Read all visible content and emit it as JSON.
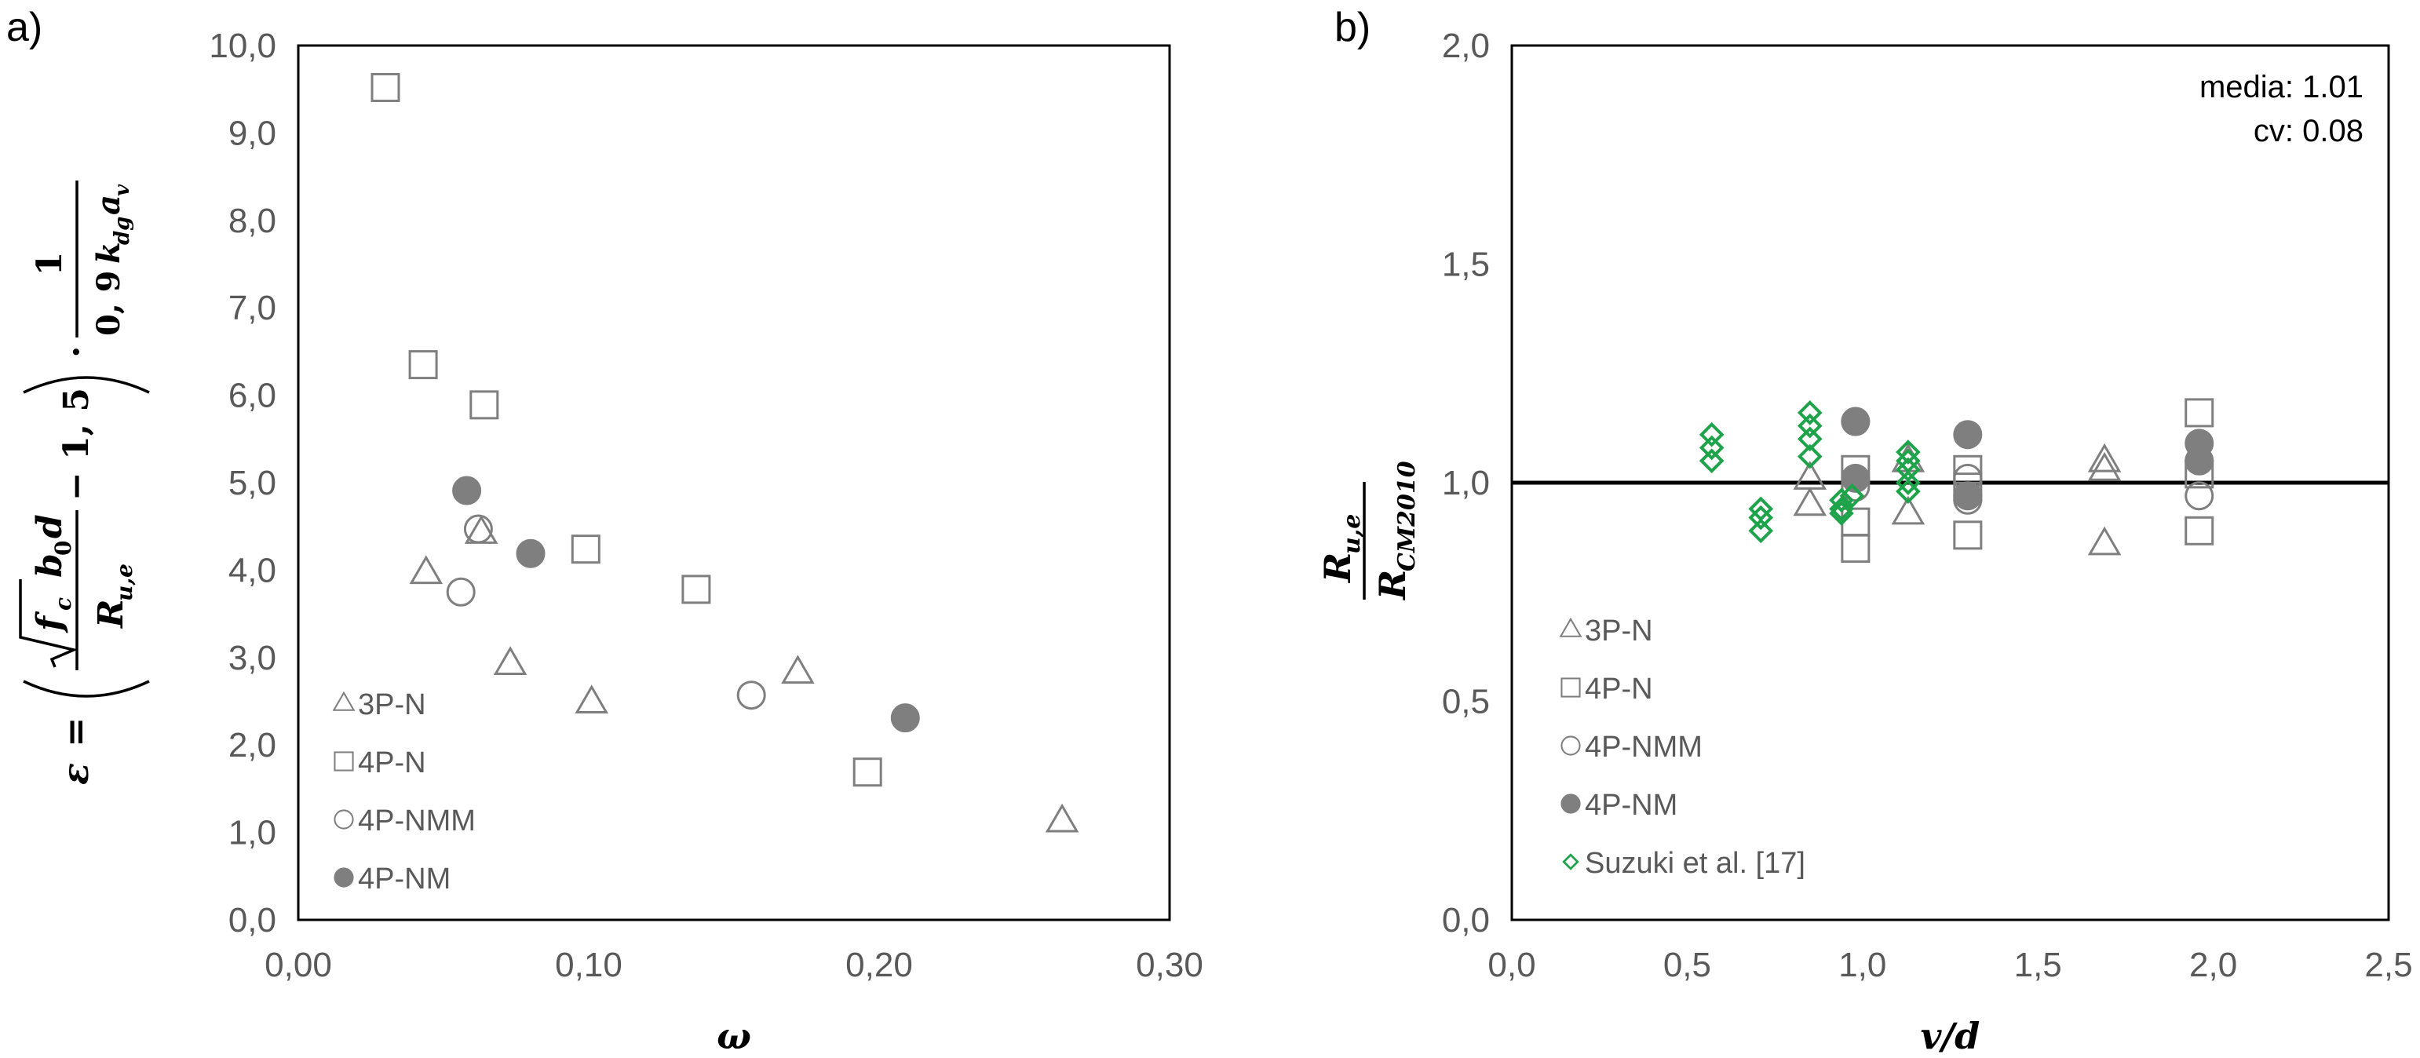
{
  "chart_data": [
    {
      "type": "scatter",
      "panel_label": "a)",
      "xlabel": "ω",
      "ylabel": {
        "lhs": "ε",
        "equals": "=",
        "sqrt_content": "f",
        "sqrt_sub": "c",
        "numerator_tail": "b",
        "numerator_tail_sub": "0",
        "numerator_end": "d",
        "denominator": "R",
        "denominator_sub": "u,e",
        "minus": "− 1, 5",
        "dot": "·",
        "frac2_num": "1",
        "frac2_den_a": "0, 9",
        "frac2_den_k": "k",
        "frac2_den_k_sub": "dg",
        "frac2_den_a2": "a",
        "frac2_den_a2_sub": "v"
      },
      "xlim": [
        0,
        0.3
      ],
      "ylim": [
        0,
        10
      ],
      "xticks": [
        "0,00",
        "0,10",
        "0,20",
        "0,30"
      ],
      "xtick_values": [
        0,
        0.1,
        0.2,
        0.3
      ],
      "yticks": [
        "0,0",
        "1,0",
        "2,0",
        "3,0",
        "4,0",
        "5,0",
        "6,0",
        "7,0",
        "8,0",
        "9,0",
        "10,0"
      ],
      "ytick_values": [
        0,
        1,
        2,
        3,
        4,
        5,
        6,
        7,
        8,
        9,
        10
      ],
      "grid": false,
      "legend_position": "bottom-left",
      "series": [
        {
          "name": "3P-N",
          "marker": "triangle-open",
          "color": "#7f7f7f",
          "points": [
            [
              0.044,
              3.97
            ],
            [
              0.063,
              4.43
            ],
            [
              0.073,
              2.93
            ],
            [
              0.101,
              2.49
            ],
            [
              0.172,
              2.83
            ],
            [
              0.263,
              1.13
            ]
          ]
        },
        {
          "name": "4P-N",
          "marker": "square-open",
          "color": "#7f7f7f",
          "points": [
            [
              0.03,
              9.52
            ],
            [
              0.043,
              6.35
            ],
            [
              0.064,
              5.89
            ],
            [
              0.099,
              4.24
            ],
            [
              0.137,
              3.78
            ],
            [
              0.196,
              1.69
            ]
          ]
        },
        {
          "name": "4P-NMM",
          "marker": "circle-open",
          "color": "#7f7f7f",
          "points": [
            [
              0.056,
              3.75
            ],
            [
              0.062,
              4.47
            ],
            [
              0.156,
              2.57
            ]
          ]
        },
        {
          "name": "4P-NM",
          "marker": "circle-filled",
          "color": "#7f7f7f",
          "points": [
            [
              0.058,
              4.91
            ],
            [
              0.08,
              4.19
            ],
            [
              0.209,
              2.31
            ]
          ]
        }
      ]
    },
    {
      "type": "scatter",
      "panel_label": "b)",
      "xlabel": "v/d",
      "ylabel": {
        "num": "R",
        "num_sub": "u,e",
        "den": "R",
        "den_sub": "CM2010"
      },
      "xlim": [
        0,
        2.5
      ],
      "ylim": [
        0,
        2.0
      ],
      "xticks": [
        "0,0",
        "0,5",
        "1,0",
        "1,5",
        "2,0",
        "2,5"
      ],
      "xtick_values": [
        0,
        0.5,
        1.0,
        1.5,
        2.0,
        2.5
      ],
      "yticks": [
        "0,0",
        "0,5",
        "1,0",
        "1,5",
        "2,0"
      ],
      "ytick_values": [
        0,
        0.5,
        1.0,
        1.5,
        2.0
      ],
      "grid": false,
      "legend_position": "bottom-left",
      "reference_line_y": 1.0,
      "annotations": [
        "media: 1.01",
        "cv: 0.08"
      ],
      "series": [
        {
          "name": "3P-N",
          "marker": "triangle-open",
          "color": "#7f7f7f",
          "points": [
            [
              0.85,
              1.01
            ],
            [
              0.85,
              0.95
            ],
            [
              1.13,
              1.05
            ],
            [
              1.13,
              0.93
            ],
            [
              1.69,
              1.05
            ],
            [
              1.69,
              1.03
            ],
            [
              1.69,
              0.86
            ]
          ]
        },
        {
          "name": "4P-N",
          "marker": "square-open",
          "color": "#7f7f7f",
          "points": [
            [
              0.98,
              1.03
            ],
            [
              0.98,
              0.91
            ],
            [
              0.98,
              0.85
            ],
            [
              1.3,
              1.03
            ],
            [
              1.3,
              0.99
            ],
            [
              1.3,
              0.88
            ],
            [
              1.96,
              1.16
            ],
            [
              1.96,
              1.02
            ],
            [
              1.96,
              0.89
            ]
          ]
        },
        {
          "name": "4P-NMM",
          "marker": "circle-open",
          "color": "#7f7f7f",
          "points": [
            [
              0.98,
              1.14
            ],
            [
              0.98,
              0.99
            ],
            [
              1.3,
              1.01
            ],
            [
              1.3,
              0.96
            ],
            [
              1.96,
              1.05
            ],
            [
              1.96,
              0.97
            ]
          ]
        },
        {
          "name": "4P-NM",
          "marker": "circle-filled",
          "color": "#7f7f7f",
          "points": [
            [
              0.98,
              1.14
            ],
            [
              0.98,
              1.01
            ],
            [
              1.3,
              1.11
            ],
            [
              1.3,
              0.97
            ],
            [
              1.96,
              1.09
            ],
            [
              1.96,
              1.05
            ]
          ]
        },
        {
          "name": "Suzuki et al. [17]",
          "marker": "diamond-open",
          "color": "#1fa34a",
          "points": [
            [
              0.57,
              1.11
            ],
            [
              0.57,
              1.08
            ],
            [
              0.57,
              1.05
            ],
            [
              0.71,
              0.94
            ],
            [
              0.71,
              0.92
            ],
            [
              0.71,
              0.89
            ],
            [
              0.85,
              1.16
            ],
            [
              0.85,
              1.13
            ],
            [
              0.85,
              1.1
            ],
            [
              0.85,
              1.06
            ],
            [
              0.94,
              0.96
            ],
            [
              0.94,
              0.94
            ],
            [
              0.94,
              0.93
            ],
            [
              0.97,
              0.97
            ],
            [
              1.13,
              1.07
            ],
            [
              1.13,
              1.05
            ],
            [
              1.13,
              1.03
            ],
            [
              1.13,
              1.0
            ],
            [
              1.13,
              0.98
            ]
          ]
        }
      ]
    }
  ]
}
